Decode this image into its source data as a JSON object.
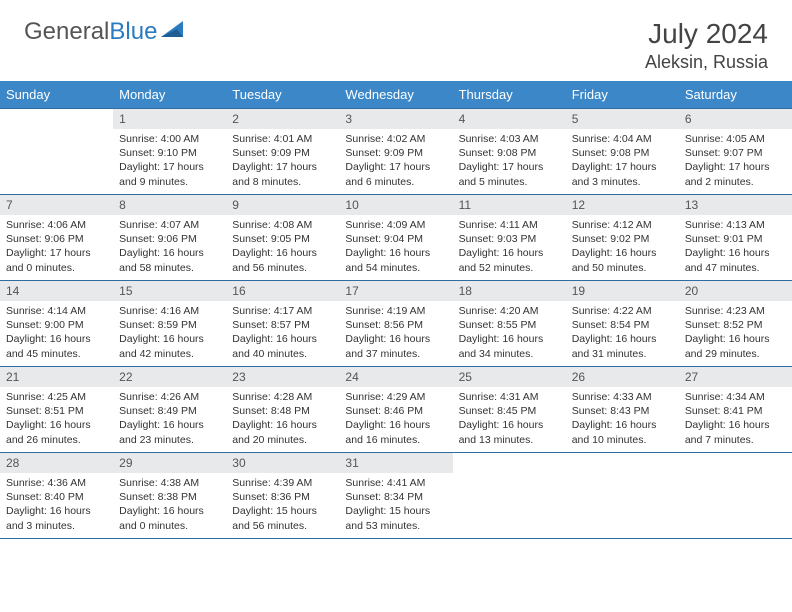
{
  "brand": {
    "name_part1": "General",
    "name_part2": "Blue"
  },
  "title": "July 2024",
  "location": "Aleksin, Russia",
  "colors": {
    "header_bg": "#3b87c8",
    "header_text": "#ffffff",
    "day_number_bg": "#e8e9ea",
    "rule": "#2e6da4",
    "brand_gray": "#555555",
    "brand_blue": "#2b7bbf"
  },
  "weekdays": [
    "Sunday",
    "Monday",
    "Tuesday",
    "Wednesday",
    "Thursday",
    "Friday",
    "Saturday"
  ],
  "start_offset": 1,
  "days": [
    {
      "n": 1,
      "sunrise": "4:00 AM",
      "sunset": "9:10 PM",
      "daylight": "17 hours and 9 minutes."
    },
    {
      "n": 2,
      "sunrise": "4:01 AM",
      "sunset": "9:09 PM",
      "daylight": "17 hours and 8 minutes."
    },
    {
      "n": 3,
      "sunrise": "4:02 AM",
      "sunset": "9:09 PM",
      "daylight": "17 hours and 6 minutes."
    },
    {
      "n": 4,
      "sunrise": "4:03 AM",
      "sunset": "9:08 PM",
      "daylight": "17 hours and 5 minutes."
    },
    {
      "n": 5,
      "sunrise": "4:04 AM",
      "sunset": "9:08 PM",
      "daylight": "17 hours and 3 minutes."
    },
    {
      "n": 6,
      "sunrise": "4:05 AM",
      "sunset": "9:07 PM",
      "daylight": "17 hours and 2 minutes."
    },
    {
      "n": 7,
      "sunrise": "4:06 AM",
      "sunset": "9:06 PM",
      "daylight": "17 hours and 0 minutes."
    },
    {
      "n": 8,
      "sunrise": "4:07 AM",
      "sunset": "9:06 PM",
      "daylight": "16 hours and 58 minutes."
    },
    {
      "n": 9,
      "sunrise": "4:08 AM",
      "sunset": "9:05 PM",
      "daylight": "16 hours and 56 minutes."
    },
    {
      "n": 10,
      "sunrise": "4:09 AM",
      "sunset": "9:04 PM",
      "daylight": "16 hours and 54 minutes."
    },
    {
      "n": 11,
      "sunrise": "4:11 AM",
      "sunset": "9:03 PM",
      "daylight": "16 hours and 52 minutes."
    },
    {
      "n": 12,
      "sunrise": "4:12 AM",
      "sunset": "9:02 PM",
      "daylight": "16 hours and 50 minutes."
    },
    {
      "n": 13,
      "sunrise": "4:13 AM",
      "sunset": "9:01 PM",
      "daylight": "16 hours and 47 minutes."
    },
    {
      "n": 14,
      "sunrise": "4:14 AM",
      "sunset": "9:00 PM",
      "daylight": "16 hours and 45 minutes."
    },
    {
      "n": 15,
      "sunrise": "4:16 AM",
      "sunset": "8:59 PM",
      "daylight": "16 hours and 42 minutes."
    },
    {
      "n": 16,
      "sunrise": "4:17 AM",
      "sunset": "8:57 PM",
      "daylight": "16 hours and 40 minutes."
    },
    {
      "n": 17,
      "sunrise": "4:19 AM",
      "sunset": "8:56 PM",
      "daylight": "16 hours and 37 minutes."
    },
    {
      "n": 18,
      "sunrise": "4:20 AM",
      "sunset": "8:55 PM",
      "daylight": "16 hours and 34 minutes."
    },
    {
      "n": 19,
      "sunrise": "4:22 AM",
      "sunset": "8:54 PM",
      "daylight": "16 hours and 31 minutes."
    },
    {
      "n": 20,
      "sunrise": "4:23 AM",
      "sunset": "8:52 PM",
      "daylight": "16 hours and 29 minutes."
    },
    {
      "n": 21,
      "sunrise": "4:25 AM",
      "sunset": "8:51 PM",
      "daylight": "16 hours and 26 minutes."
    },
    {
      "n": 22,
      "sunrise": "4:26 AM",
      "sunset": "8:49 PM",
      "daylight": "16 hours and 23 minutes."
    },
    {
      "n": 23,
      "sunrise": "4:28 AM",
      "sunset": "8:48 PM",
      "daylight": "16 hours and 20 minutes."
    },
    {
      "n": 24,
      "sunrise": "4:29 AM",
      "sunset": "8:46 PM",
      "daylight": "16 hours and 16 minutes."
    },
    {
      "n": 25,
      "sunrise": "4:31 AM",
      "sunset": "8:45 PM",
      "daylight": "16 hours and 13 minutes."
    },
    {
      "n": 26,
      "sunrise": "4:33 AM",
      "sunset": "8:43 PM",
      "daylight": "16 hours and 10 minutes."
    },
    {
      "n": 27,
      "sunrise": "4:34 AM",
      "sunset": "8:41 PM",
      "daylight": "16 hours and 7 minutes."
    },
    {
      "n": 28,
      "sunrise": "4:36 AM",
      "sunset": "8:40 PM",
      "daylight": "16 hours and 3 minutes."
    },
    {
      "n": 29,
      "sunrise": "4:38 AM",
      "sunset": "8:38 PM",
      "daylight": "16 hours and 0 minutes."
    },
    {
      "n": 30,
      "sunrise": "4:39 AM",
      "sunset": "8:36 PM",
      "daylight": "15 hours and 56 minutes."
    },
    {
      "n": 31,
      "sunrise": "4:41 AM",
      "sunset": "8:34 PM",
      "daylight": "15 hours and 53 minutes."
    }
  ],
  "labels": {
    "sunrise": "Sunrise:",
    "sunset": "Sunset:",
    "daylight": "Daylight:"
  }
}
